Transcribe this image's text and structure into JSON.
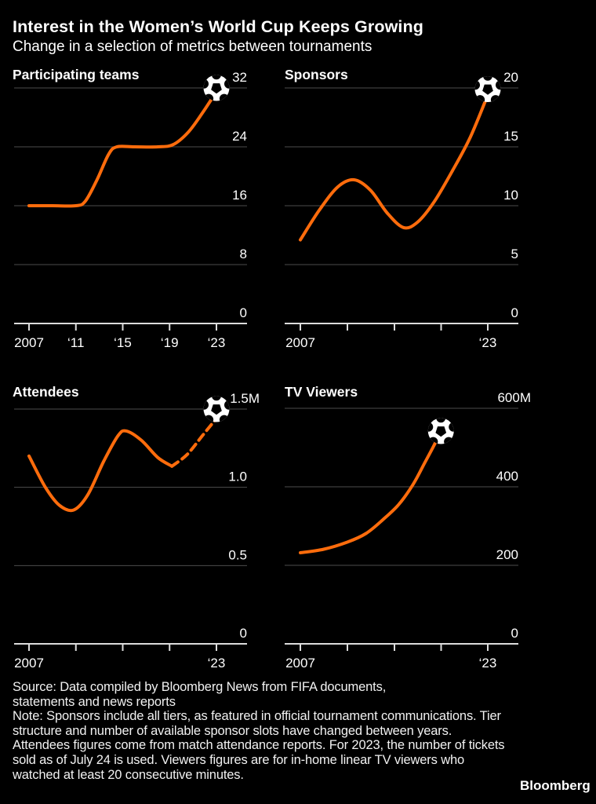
{
  "header": {
    "title": "Interest in the Women’s World Cup Keeps Growing",
    "subtitle": "Change in a selection of metrics between tournaments"
  },
  "colors": {
    "background": "#000000",
    "line_orange": "#ff6c0c",
    "gridline": "#4d4d4d",
    "axis": "#dcdcdc",
    "text": "#ffffff"
  },
  "chart_data": [
    {
      "type": "line",
      "title": "Participating teams",
      "ylabel": "",
      "xlabel": "",
      "ylim": [
        0,
        32
      ],
      "grid": true,
      "yticks": [
        {
          "value": 32,
          "label": "32"
        },
        {
          "value": 24,
          "label": "24"
        },
        {
          "value": 16,
          "label": "16"
        },
        {
          "value": 8,
          "label": "8"
        },
        {
          "value": 0,
          "label": "0"
        }
      ],
      "xtick_years": [
        2007,
        2011,
        2015,
        2019,
        2023
      ],
      "xtick_labels": [
        "2007",
        "‘11",
        "‘15",
        "‘19",
        "‘23"
      ],
      "tournament_values": {
        "2007": 16,
        "2011": 16,
        "2015": 24,
        "2019": 24,
        "2023": 32
      },
      "series": [
        {
          "name": "teams-curve",
          "style": "solid",
          "x": [
            2007,
            2009,
            2011,
            2011.8,
            2012.8,
            2013.8,
            2014.5,
            2016,
            2018,
            2019.3,
            2020.6,
            2021.8,
            2023
          ],
          "y": [
            16,
            16,
            16,
            16.6,
            19.5,
            23,
            24,
            24,
            24,
            24.3,
            26,
            28.6,
            31.5
          ]
        }
      ],
      "ball": {
        "x": 2023,
        "y": 32
      }
    },
    {
      "type": "line",
      "title": "Sponsors",
      "ylabel": "",
      "xlabel": "",
      "ylim": [
        0,
        20
      ],
      "grid": true,
      "yticks": [
        {
          "value": 20,
          "label": "20"
        },
        {
          "value": 15,
          "label": "15"
        },
        {
          "value": 10,
          "label": "10"
        },
        {
          "value": 5,
          "label": "5"
        },
        {
          "value": 0,
          "label": "0"
        }
      ],
      "xtick_years": [
        2007,
        2011,
        2015,
        2019,
        2023
      ],
      "xtick_labels": [
        "2007",
        "",
        "",
        "",
        "‘23"
      ],
      "tournament_values": {
        "2007": 7,
        "2011": 12,
        "2015": 8,
        "2023": 20
      },
      "series": [
        {
          "name": "sponsors-curve",
          "style": "solid",
          "x": [
            2007,
            2008.6,
            2010.2,
            2011.6,
            2013,
            2014.4,
            2015.8,
            2017,
            2018.4,
            2020,
            2021.5,
            2023
          ],
          "y": [
            7.1,
            9.6,
            11.6,
            12.2,
            11.3,
            9.4,
            8.15,
            8.6,
            10.3,
            13,
            15.8,
            19.4
          ]
        }
      ],
      "ball": {
        "x": 2023,
        "y": 19.9
      }
    },
    {
      "type": "line",
      "title": "Attendees",
      "unit": "M",
      "ylabel": "",
      "xlabel": "",
      "ylim": [
        0,
        1.5
      ],
      "grid": true,
      "yticks": [
        {
          "value": 1.5,
          "label": "1.5M"
        },
        {
          "value": 1.0,
          "label": "1.0"
        },
        {
          "value": 0.5,
          "label": "0.5"
        },
        {
          "value": 0,
          "label": "0"
        }
      ],
      "xtick_years": [
        2007,
        2011,
        2015,
        2019,
        2023
      ],
      "xtick_labels": [
        "2007",
        "",
        "",
        "",
        "‘23"
      ],
      "tournament_values": {
        "2007": 1.2,
        "2011": 0.85,
        "2015": 1.35,
        "2019": 1.13,
        "2023": 1.44
      },
      "series": [
        {
          "name": "attendees-curve",
          "style": "solid",
          "x": [
            2007,
            2008.4,
            2009.6,
            2010.8,
            2012,
            2013.4,
            2014.6,
            2015.3,
            2016.6,
            2018,
            2019.2
          ],
          "y": [
            1.2,
            1.0,
            0.885,
            0.855,
            0.95,
            1.17,
            1.33,
            1.36,
            1.3,
            1.19,
            1.135
          ]
        },
        {
          "name": "attendees-projection",
          "style": "dashed",
          "x": [
            2019.2,
            2020.5,
            2021.8,
            2023
          ],
          "y": [
            1.135,
            1.21,
            1.33,
            1.44
          ]
        }
      ],
      "ball": {
        "x": 2023,
        "y": 1.5
      }
    },
    {
      "type": "line",
      "title": "TV Viewers",
      "unit": "M",
      "ylabel": "",
      "xlabel": "",
      "ylim": [
        0,
        600
      ],
      "grid": true,
      "yticks": [
        {
          "value": 600,
          "label": "600M"
        },
        {
          "value": 400,
          "label": "400"
        },
        {
          "value": 200,
          "label": "200"
        },
        {
          "value": 0,
          "label": "0"
        }
      ],
      "xtick_years": [
        2007,
        2011,
        2015,
        2019,
        2023
      ],
      "xtick_labels": [
        "2007",
        "",
        "",
        "",
        "‘23"
      ],
      "tournament_values": {
        "2007": 232,
        "2011": 260,
        "2015": 355,
        "2019": 542
      },
      "series": [
        {
          "name": "viewers-curve",
          "style": "solid",
          "x": [
            2007,
            2009,
            2011,
            2012.6,
            2014,
            2015.4,
            2016.6,
            2017.6,
            2018.4,
            2019
          ],
          "y": [
            232,
            241,
            259,
            281,
            315,
            355,
            405,
            460,
            505,
            542
          ]
        }
      ],
      "ball": {
        "x": 2019,
        "y": 542
      }
    }
  ],
  "footer": {
    "source": "Source: Data compiled by Bloomberg News from FIFA documents, statements and news reports",
    "note": "Note: Sponsors include all tiers, as featured in official tournament communications. Tier structure and number of available sponsor slots have changed between years. Attendees figures come from match attendance reports. For 2023, the number of tickets sold as of July 24 is used. Viewers figures are for in-home linear TV viewers who watched at least 20 consecutive minutes.",
    "brand": "Bloomberg"
  }
}
